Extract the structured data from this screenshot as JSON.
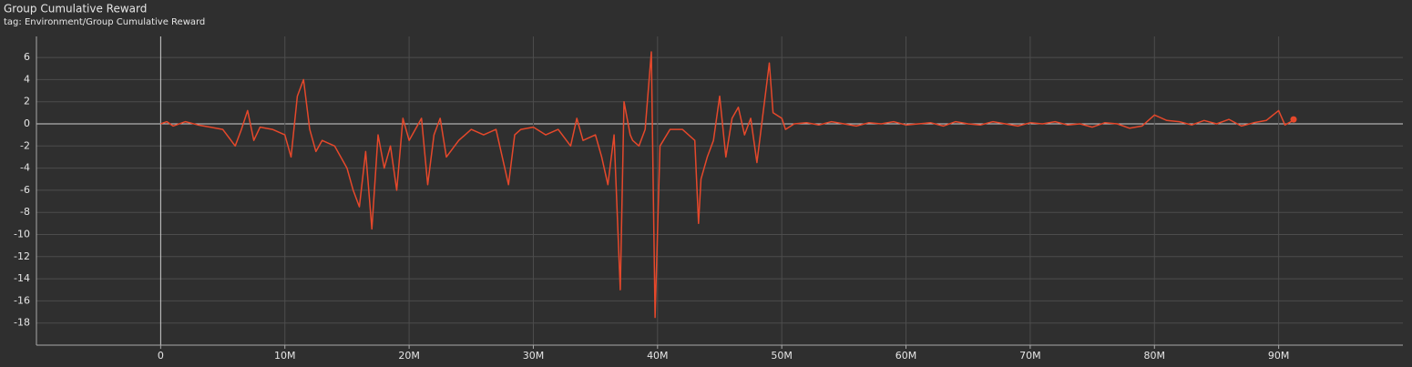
{
  "chart_data": {
    "type": "line",
    "title": "Group Cumulative Reward",
    "subtitle": "tag: Environment/Group Cumulative Reward",
    "color": "#e5482b",
    "grid": true,
    "xlim": [
      -10000000,
      100000000
    ],
    "ylim": [
      -20,
      7.9
    ],
    "xticks": [
      0,
      {
        "value": 10000000,
        "label": "10M"
      },
      {
        "value": 20000000,
        "label": "20M"
      },
      {
        "value": 30000000,
        "label": "30M"
      },
      {
        "value": 40000000,
        "label": "40M"
      },
      {
        "value": 50000000,
        "label": "50M"
      },
      {
        "value": 60000000,
        "label": "60M"
      },
      {
        "value": 70000000,
        "label": "70M"
      },
      {
        "value": 80000000,
        "label": "80M"
      },
      {
        "value": 90000000,
        "label": "90M"
      }
    ],
    "yticks": [
      -18,
      -16,
      -14,
      -12,
      -10,
      -8,
      -6,
      -4,
      -2,
      0,
      2,
      4,
      6
    ],
    "x": [
      0,
      500000,
      1000000,
      2000000,
      3000000,
      4000000,
      5000000,
      6000000,
      6500000,
      7000000,
      7500000,
      8000000,
      9000000,
      10000000,
      10500000,
      11000000,
      11500000,
      12000000,
      12500000,
      13000000,
      14000000,
      15000000,
      15500000,
      16000000,
      16500000,
      17000000,
      17500000,
      18000000,
      18500000,
      19000000,
      19500000,
      20000000,
      21000000,
      21500000,
      22000000,
      22500000,
      23000000,
      24000000,
      25000000,
      26000000,
      27000000,
      28000000,
      28500000,
      29000000,
      30000000,
      31000000,
      32000000,
      33000000,
      33500000,
      34000000,
      35000000,
      35500000,
      36000000,
      36500000,
      37000000,
      37300000,
      37800000,
      38000000,
      38500000,
      39000000,
      39500000,
      39800000,
      40200000,
      41000000,
      42000000,
      43000000,
      43300000,
      43500000,
      44000000,
      44500000,
      45000000,
      45500000,
      46000000,
      46500000,
      47000000,
      47500000,
      48000000,
      48500000,
      49000000,
      49300000,
      50000000,
      50300000,
      51000000,
      52000000,
      53000000,
      54000000,
      55000000,
      56000000,
      57000000,
      58000000,
      59000000,
      60000000,
      61000000,
      62000000,
      63000000,
      64000000,
      65000000,
      66000000,
      67000000,
      68000000,
      69000000,
      70000000,
      71000000,
      72000000,
      73000000,
      74000000,
      75000000,
      76000000,
      77000000,
      78000000,
      79000000,
      80000000,
      81000000,
      82000000,
      83000000,
      84000000,
      85000000,
      86000000,
      87000000,
      88000000,
      89000000,
      90000000,
      90500000,
      91000000,
      91200000
    ],
    "values": [
      0,
      0.2,
      -0.2,
      0.2,
      -0.1,
      -0.3,
      -0.5,
      -2.0,
      -0.5,
      1.2,
      -1.5,
      -0.3,
      -0.5,
      -1.0,
      -3.0,
      2.5,
      4.0,
      -0.5,
      -2.5,
      -1.5,
      -2.0,
      -4.0,
      -6.0,
      -7.5,
      -2.5,
      -9.5,
      -1.0,
      -4.0,
      -2.0,
      -6.0,
      0.5,
      -1.5,
      0.5,
      -5.5,
      -1.0,
      0.5,
      -3.0,
      -1.5,
      -0.5,
      -1.0,
      -0.5,
      -5.5,
      -1.0,
      -0.5,
      -0.3,
      -1.0,
      -0.5,
      -2.0,
      0.5,
      -1.5,
      -1.0,
      -3.0,
      -5.5,
      -1.0,
      -15,
      2.0,
      -1.0,
      -1.5,
      -2.0,
      -0.5,
      6.5,
      -17.5,
      -2.0,
      -0.5,
      -0.5,
      -1.5,
      -9.0,
      -5.0,
      -3.0,
      -1.5,
      2.5,
      -3.0,
      0.5,
      1.5,
      -1.0,
      0.5,
      -3.5,
      1.0,
      5.5,
      1.0,
      0.5,
      -0.5,
      0,
      0.1,
      -0.1,
      0.2,
      0,
      -0.2,
      0.1,
      0,
      0.2,
      -0.1,
      0,
      0.1,
      -0.2,
      0.2,
      0,
      -0.1,
      0.2,
      0,
      -0.2,
      0.1,
      0,
      0.2,
      -0.1,
      0,
      -0.3,
      0.1,
      0,
      -0.4,
      -0.2,
      0.8,
      0.3,
      0.2,
      -0.1,
      0.3,
      0,
      0.4,
      -0.2,
      0.1,
      0.3,
      1.2,
      -0.1,
      0.2,
      0.4
    ]
  }
}
